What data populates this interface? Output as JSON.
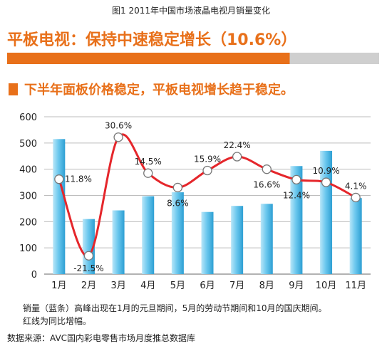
{
  "caption": "图1 2011年中国市场液晶电视月销量变化",
  "headline": "平板电视：保持中速稳定增长（10.6%）",
  "subhead": "下半年面板价格稳定，平板电视增长趋于稳定。",
  "note_line1": "销量（蓝条）高峰出现在1月的元旦期间，5月的劳动节期间和10月的国庆期间。",
  "note_line2": "红线为同比增幅。",
  "source": "数据来源：AVC国内彩电零售市场月度推总数据库",
  "colors": {
    "accent": "#e8701a",
    "bar": "#6cc8ee",
    "line": "#e5262b"
  },
  "chart_data": {
    "type": "bar",
    "categories": [
      "1月",
      "2月",
      "3月",
      "4月",
      "5月",
      "6月",
      "7月",
      "8月",
      "9月",
      "10月",
      "11月"
    ],
    "values": [
      515,
      210,
      243,
      297,
      312,
      237,
      260,
      268,
      412,
      470,
      290
    ],
    "ylim": [
      0,
      600
    ],
    "yticks": [
      0,
      100,
      200,
      300,
      400,
      500,
      600
    ],
    "grid": true,
    "line_labels": [
      "11.8%",
      "-21.5%",
      "30.6%",
      "14.5%",
      "8.6%",
      "15.9%",
      "22.4%",
      "16.6%",
      "12.4%",
      "10.9%",
      "4.1%"
    ],
    "line_values": [
      362,
      70,
      522,
      385,
      330,
      395,
      448,
      400,
      360,
      350,
      292
    ]
  }
}
